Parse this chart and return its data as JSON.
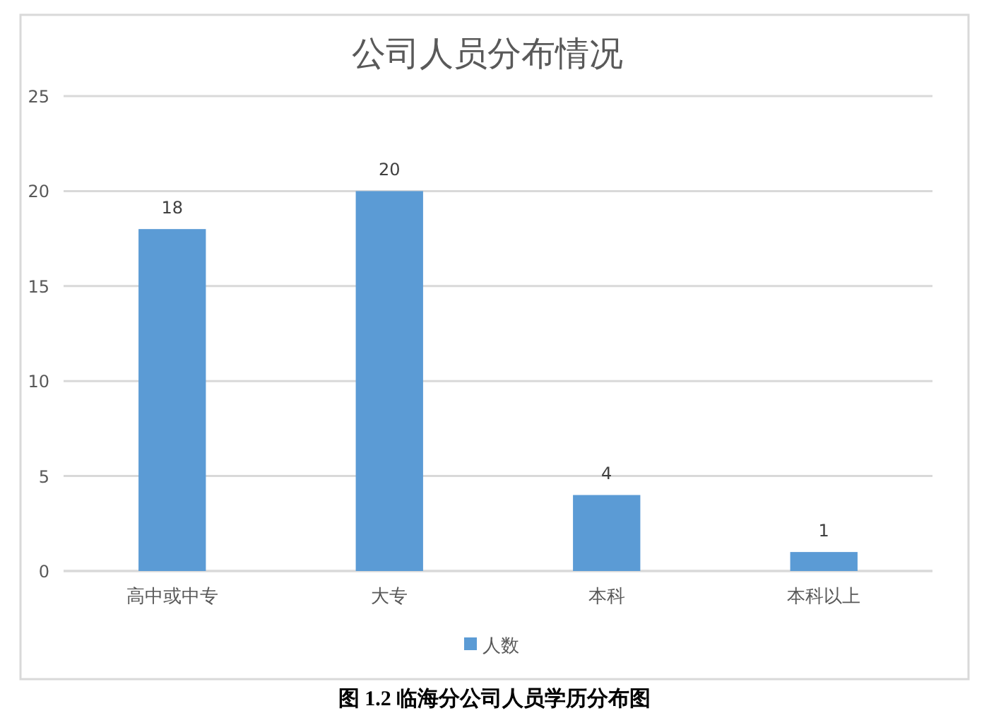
{
  "chart_data": {
    "type": "bar",
    "title": "公司人员分布情况",
    "categories": [
      "高中或中专",
      "大专",
      "本科",
      "本科以上"
    ],
    "series": [
      {
        "name": "人数",
        "color": "#5b9bd5",
        "values": [
          18,
          20,
          4,
          1
        ]
      }
    ],
    "ylim": [
      0,
      25
    ],
    "yticks": [
      0,
      5,
      10,
      15,
      20,
      25
    ],
    "grid": "y",
    "legend": "bottom",
    "data_labels": true,
    "annotations": [
      "图 1.2 临海分公司人员学历分布图"
    ]
  }
}
